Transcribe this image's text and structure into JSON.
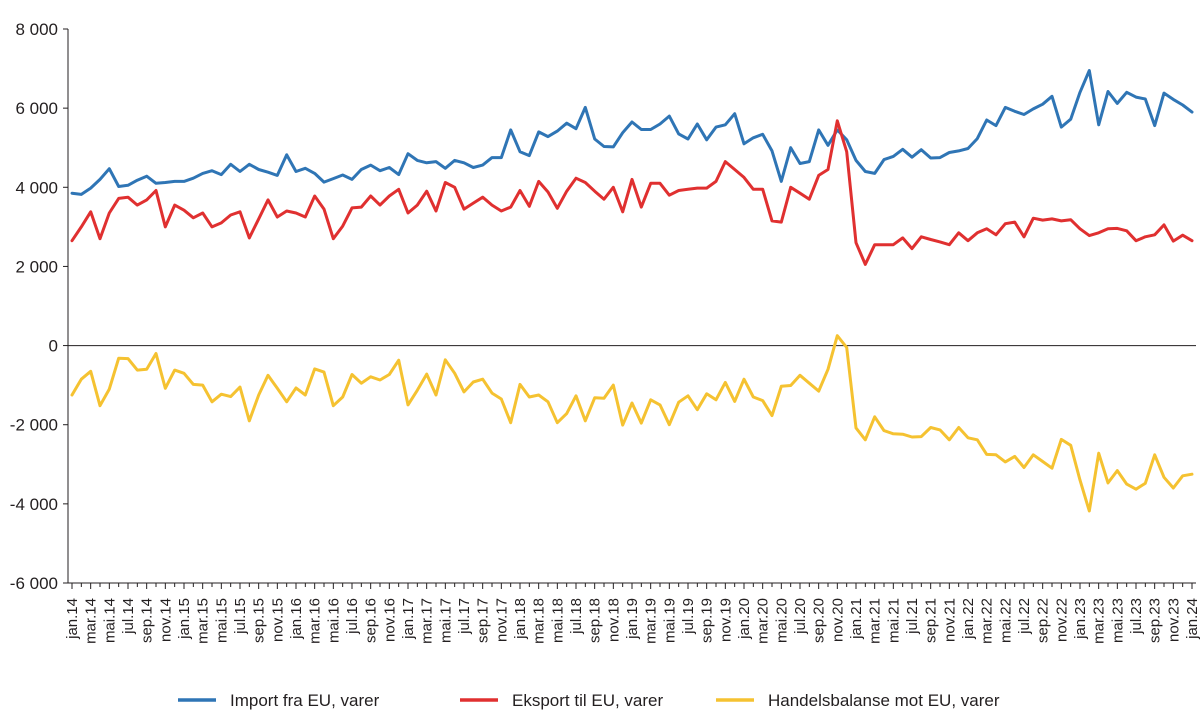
{
  "chart_data": {
    "type": "line",
    "title": "",
    "xlabel": "",
    "ylabel": "",
    "ylim": [
      -6000,
      8000
    ],
    "y_ticks": [
      8000,
      6000,
      4000,
      2000,
      0,
      -2000,
      -4000,
      -6000
    ],
    "y_tick_labels": [
      "8 000",
      "6 000",
      "4 000",
      "2 000",
      "0",
      "-2 000",
      "-4 000",
      "-6 000"
    ],
    "x_start": "jan.14",
    "x_end": "jan.24",
    "x_labels": [
      "jan.14",
      "mar.14",
      "mai.14",
      "jul.14",
      "sep.14",
      "nov.14",
      "jan.15",
      "mar.15",
      "mai.15",
      "jul.15",
      "sep.15",
      "nov.15",
      "jan.16",
      "mar.16",
      "mai.16",
      "jul.16",
      "sep.16",
      "nov.16",
      "jan.17",
      "mar.17",
      "mai.17",
      "jul.17",
      "sep.17",
      "nov.17",
      "jan.18",
      "mar.18",
      "mai.18",
      "jul.18",
      "sep.18",
      "nov.18",
      "jan.19",
      "mar.19",
      "mai.19",
      "jul.19",
      "sep.19",
      "nov.19",
      "jan.20",
      "mar.20",
      "mai.20",
      "jul.20",
      "sep.20",
      "nov.20",
      "jan.21",
      "mar.21",
      "mai.21",
      "jul.21",
      "sep.21",
      "nov.21",
      "jan.22",
      "mar.22",
      "mai.22",
      "jul.22",
      "sep.22",
      "nov.22",
      "jan.23",
      "mar.23",
      "mai.23",
      "jul.23",
      "sep.23",
      "nov.23",
      "jan.24"
    ],
    "grid": false,
    "legend_position": "bottom",
    "series": [
      {
        "name": "Import fra EU, varer",
        "color": "#2f75b5",
        "values": [
          3850,
          3820,
          3980,
          4200,
          4470,
          4020,
          4050,
          4180,
          4280,
          4100,
          4120,
          4150,
          4150,
          4230,
          4350,
          4420,
          4320,
          4580,
          4400,
          4580,
          4450,
          4380,
          4300,
          4820,
          4400,
          4480,
          4350,
          4130,
          4220,
          4310,
          4200,
          4450,
          4560,
          4420,
          4500,
          4320,
          4850,
          4680,
          4620,
          4650,
          4480,
          4680,
          4620,
          4500,
          4560,
          4750,
          4750,
          5450,
          4900,
          4800,
          5400,
          5280,
          5420,
          5620,
          5480,
          6020,
          5220,
          5030,
          5020,
          5380,
          5650,
          5460,
          5460,
          5600,
          5800,
          5350,
          5220,
          5600,
          5200,
          5520,
          5580,
          5860,
          5100,
          5250,
          5340,
          4920,
          4150,
          5000,
          4600,
          4650,
          5450,
          5060,
          5450,
          5200,
          4680,
          4400,
          4350,
          4700,
          4780,
          4960,
          4760,
          4950,
          4740,
          4750,
          4880,
          4920,
          4980,
          5230,
          5700,
          5560,
          6020,
          5920,
          5840,
          5980,
          6100,
          6300,
          5520,
          5720,
          6400,
          6950,
          5580,
          6420,
          6120,
          6400,
          6280,
          6230,
          5560,
          6380,
          6220,
          6080,
          5900
        ]
      },
      {
        "name": "Eksport til EU, varer",
        "color": "#e03030",
        "values": [
          2650,
          3000,
          3380,
          2700,
          3350,
          3720,
          3750,
          3550,
          3680,
          3920,
          3000,
          3550,
          3420,
          3230,
          3350,
          3000,
          3100,
          3300,
          3380,
          2720,
          3200,
          3680,
          3250,
          3400,
          3350,
          3250,
          3780,
          3450,
          2700,
          3020,
          3480,
          3500,
          3780,
          3550,
          3780,
          3950,
          3350,
          3550,
          3900,
          3400,
          4120,
          4000,
          3450,
          3600,
          3750,
          3550,
          3400,
          3500,
          3920,
          3520,
          4150,
          3880,
          3470,
          3900,
          4230,
          4120,
          3900,
          3700,
          4000,
          3380,
          4200,
          3500,
          4100,
          4100,
          3800,
          3920,
          3950,
          3980,
          3980,
          4150,
          4650,
          4450,
          4250,
          3950,
          3950,
          3150,
          3120,
          4000,
          3850,
          3700,
          4300,
          4450,
          5680,
          4900,
          2600,
          2050,
          2550,
          2550,
          2550,
          2720,
          2450,
          2750,
          2680,
          2620,
          2550,
          2850,
          2650,
          2850,
          2950,
          2800,
          3080,
          3120,
          2750,
          3220,
          3170,
          3200,
          3150,
          3180,
          2950,
          2780,
          2850,
          2950,
          2960,
          2900,
          2650,
          2750,
          2800,
          3050,
          2640,
          2790,
          2650
        ]
      },
      {
        "name": "Handelsbalanse mot EU, varer",
        "color": "#f5c231",
        "values": [
          -1250,
          -850,
          -650,
          -1520,
          -1100,
          -320,
          -330,
          -620,
          -600,
          -200,
          -1080,
          -620,
          -700,
          -980,
          -1000,
          -1420,
          -1230,
          -1290,
          -1050,
          -1900,
          -1250,
          -750,
          -1080,
          -1420,
          -1070,
          -1250,
          -590,
          -670,
          -1520,
          -1300,
          -730,
          -950,
          -790,
          -870,
          -730,
          -370,
          -1500,
          -1130,
          -720,
          -1250,
          -360,
          -700,
          -1170,
          -920,
          -850,
          -1200,
          -1350,
          -1950,
          -980,
          -1300,
          -1250,
          -1420,
          -1950,
          -1720,
          -1270,
          -1900,
          -1320,
          -1330,
          -1000,
          -2010,
          -1450,
          -1960,
          -1370,
          -1500,
          -2000,
          -1430,
          -1270,
          -1620,
          -1220,
          -1370,
          -930,
          -1410,
          -850,
          -1300,
          -1390,
          -1770,
          -1030,
          -1010,
          -750,
          -950,
          -1150,
          -600,
          250,
          -50,
          -2080,
          -2380,
          -1800,
          -2150,
          -2230,
          -2240,
          -2310,
          -2300,
          -2070,
          -2130,
          -2380,
          -2070,
          -2330,
          -2380,
          -2750,
          -2760,
          -2940,
          -2800,
          -3080,
          -2760,
          -2930,
          -3100,
          -2370,
          -2520,
          -3400,
          -4180,
          -2720,
          -3470,
          -3160,
          -3500,
          -3630,
          -3480,
          -2760,
          -3330,
          -3600,
          -3290,
          -3250
        ]
      }
    ]
  }
}
